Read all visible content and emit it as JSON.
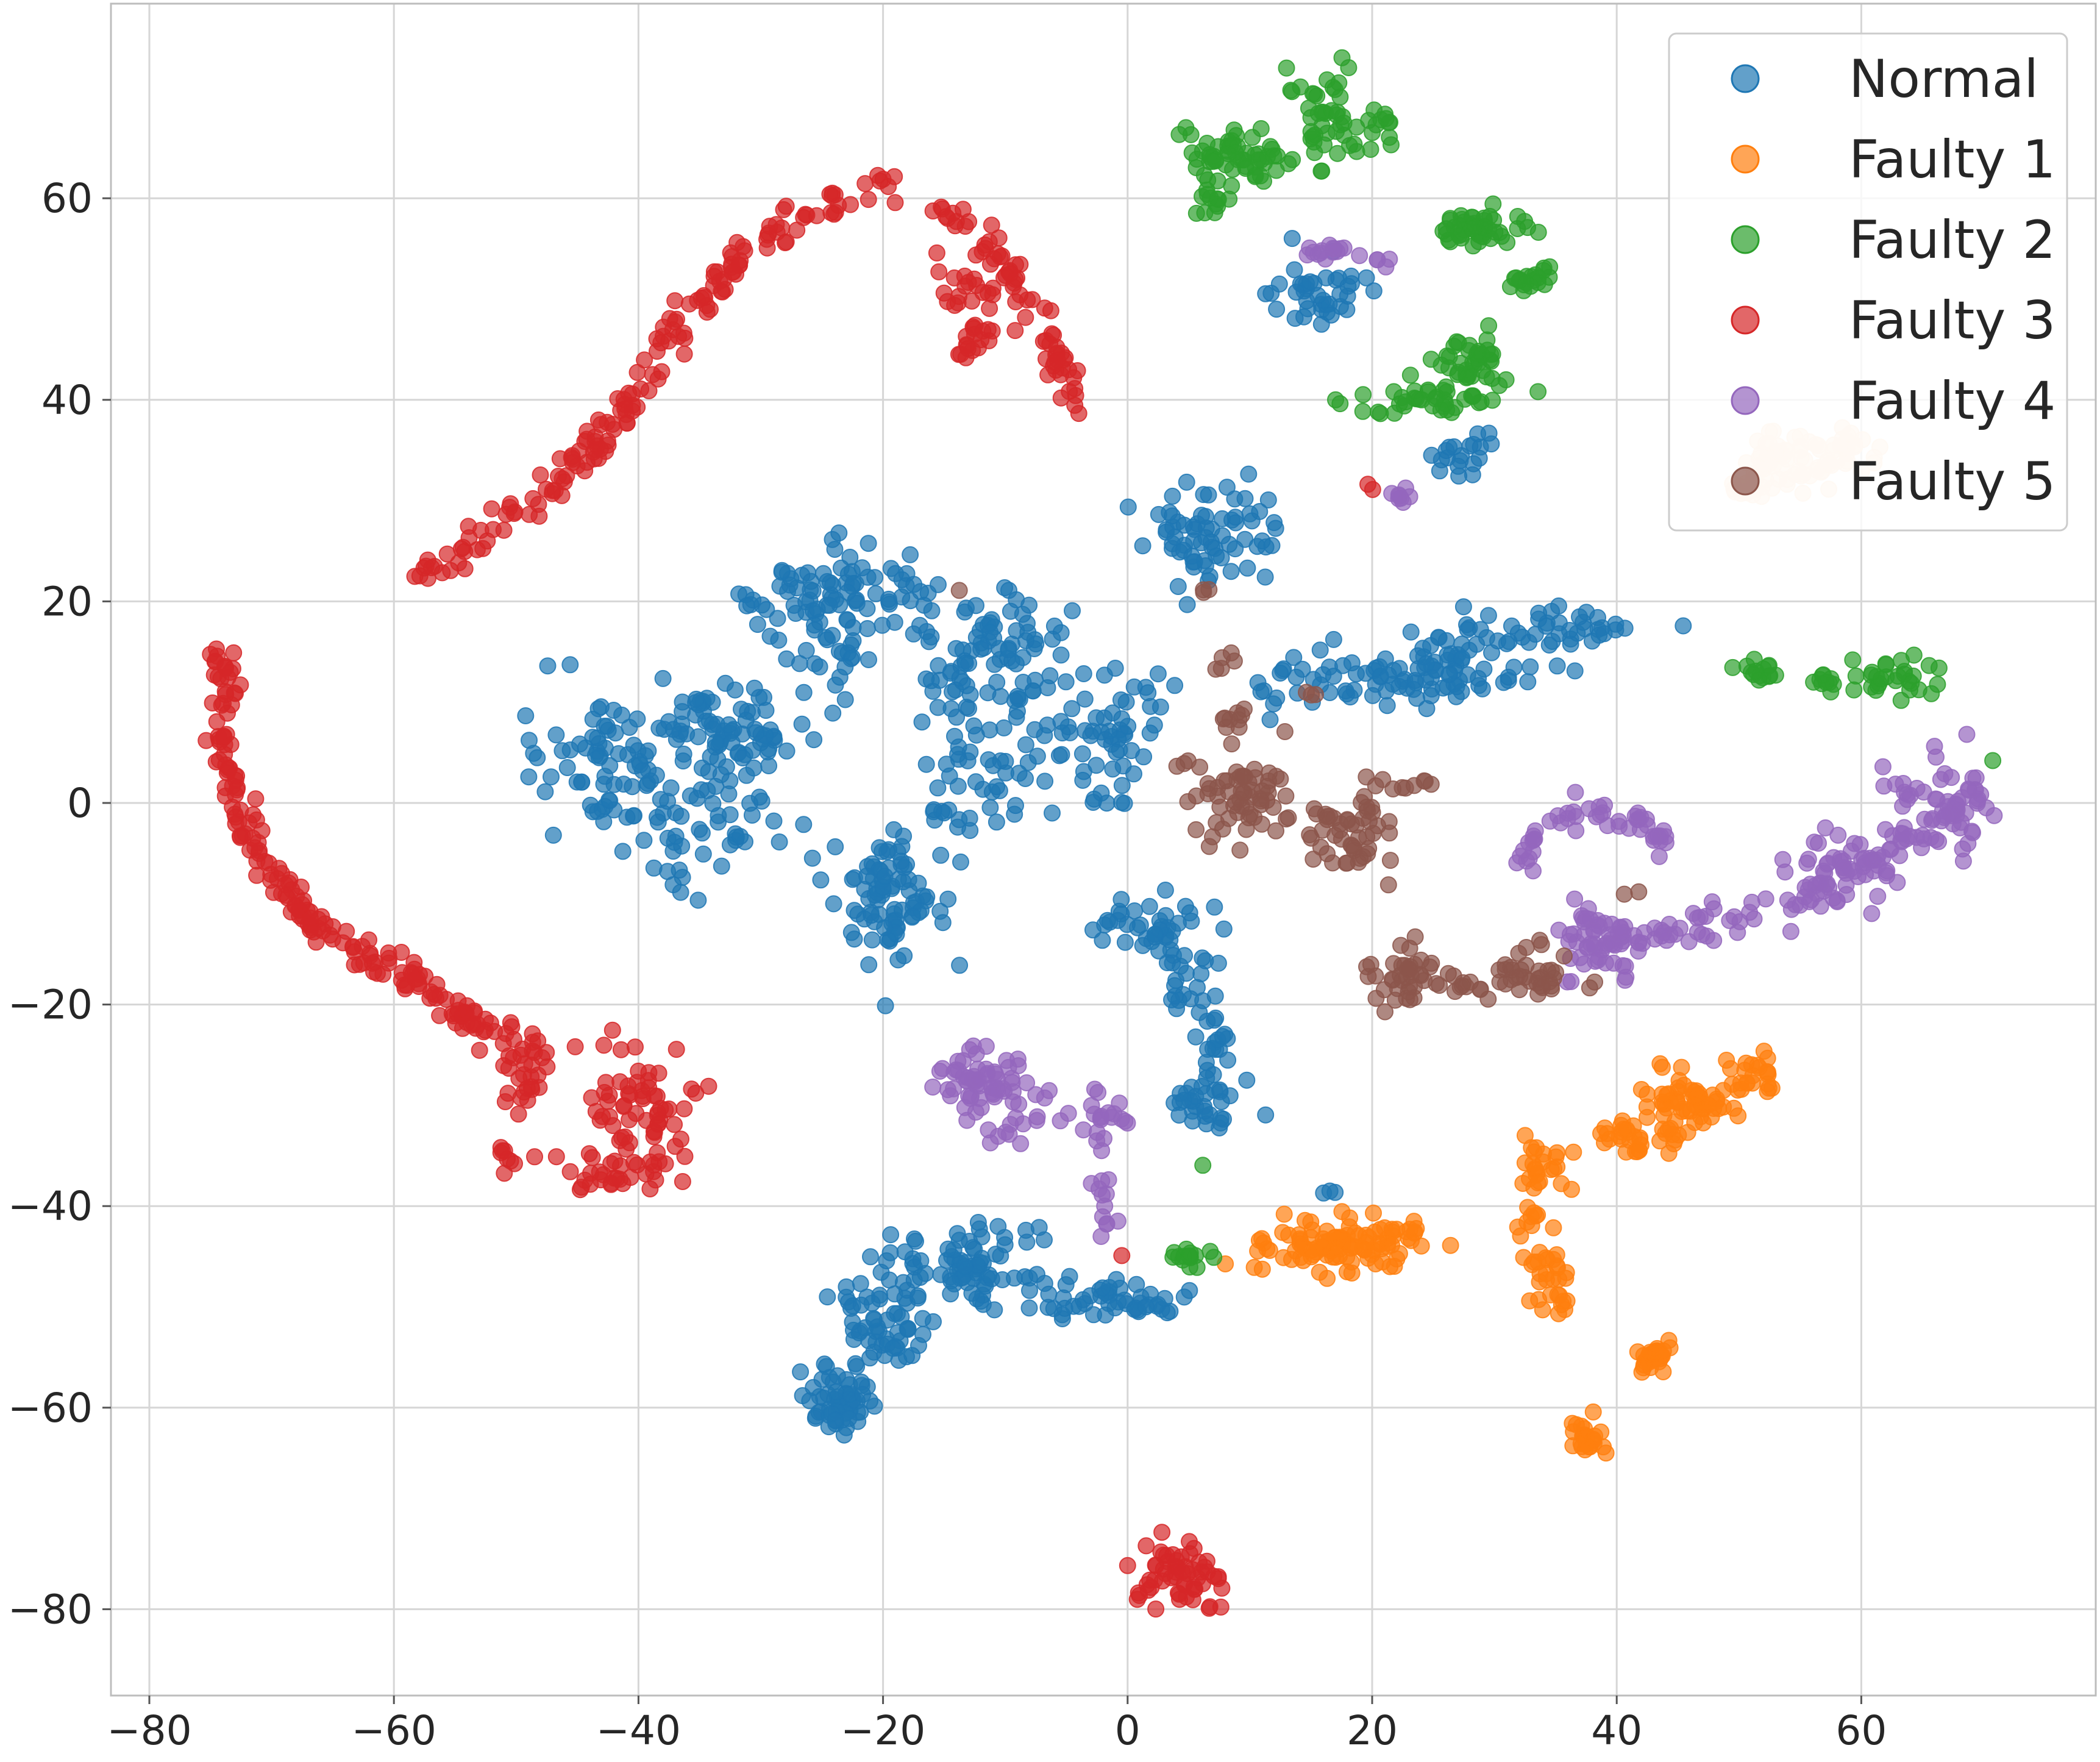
{
  "chart_data": {
    "type": "scatter",
    "title": "",
    "xlabel": "",
    "ylabel": "",
    "xlim": [
      -84,
      82
    ],
    "ylim": [
      -88,
      79
    ],
    "xticks": [
      -80,
      -60,
      -40,
      -20,
      0,
      20,
      40,
      60
    ],
    "yticks": [
      60,
      40,
      20,
      0,
      -20,
      -40,
      -60,
      -80
    ],
    "xtick_labels": [
      "−80",
      "−60",
      "−40",
      "−20",
      "0",
      "20",
      "40",
      "60"
    ],
    "ytick_labels": [
      "60",
      "40",
      "20",
      "0",
      "−20",
      "−40",
      "−60",
      "−80"
    ],
    "grid": true,
    "legend_position": "top-right",
    "series": [
      {
        "name": "Normal",
        "color": "#1f77b4",
        "clusters": [
          {
            "x": -42,
            "y": 3,
            "sx": 3.5,
            "sy": 3.5,
            "n": 70
          },
          {
            "x": -37,
            "y": -5,
            "sx": 1.5,
            "sy": 2.5,
            "n": 20
          },
          {
            "x": -33,
            "y": 7,
            "sx": 3.5,
            "sy": 2.5,
            "n": 90
          },
          {
            "x": -33,
            "y": -1,
            "sx": 2,
            "sy": 2,
            "n": 25
          },
          {
            "x": -28,
            "y": 20,
            "sx": 2.5,
            "sy": 1.2,
            "n": 30
          },
          {
            "x": -23,
            "y": 23,
            "sx": 2.5,
            "sy": 2,
            "n": 30
          },
          {
            "x": -24,
            "y": 16,
            "sx": 2,
            "sy": 2,
            "n": 30
          },
          {
            "x": -19,
            "y": 20,
            "sx": 2,
            "sy": 1.5,
            "n": 20
          },
          {
            "x": -20,
            "y": -9,
            "sx": 2.5,
            "sy": 3,
            "n": 90
          },
          {
            "x": -14,
            "y": 11,
            "sx": 1.5,
            "sy": 2.5,
            "n": 30
          },
          {
            "x": -12,
            "y": 2,
            "sx": 3,
            "sy": 2.5,
            "n": 40
          },
          {
            "x": -10,
            "y": 17,
            "sx": 2.5,
            "sy": 2,
            "n": 50
          },
          {
            "x": -8,
            "y": 10,
            "sx": 1.5,
            "sy": 2.5,
            "n": 20
          },
          {
            "x": -2,
            "y": 6,
            "sx": 2,
            "sy": 3,
            "n": 50
          },
          {
            "x": 3,
            "y": 11,
            "sx": 1,
            "sy": 1,
            "n": 5
          },
          {
            "x": 5,
            "y": 27,
            "sx": 1.5,
            "sy": 3,
            "n": 35
          },
          {
            "x": 9,
            "y": 26,
            "sx": 2,
            "sy": 2.5,
            "n": 35
          },
          {
            "x": 2,
            "y": -12,
            "sx": 3,
            "sy": 1.5,
            "n": 40
          },
          {
            "x": 5,
            "y": -18,
            "sx": 1.5,
            "sy": 2,
            "n": 20
          },
          {
            "x": 7,
            "y": -24,
            "sx": 1,
            "sy": 2,
            "n": 20
          },
          {
            "x": 6,
            "y": -30,
            "sx": 2,
            "sy": 1.5,
            "n": 30
          },
          {
            "x": 16,
            "y": 12,
            "sx": 4,
            "sy": 1.5,
            "n": 30
          },
          {
            "x": 23,
            "y": 12,
            "sx": 4,
            "sy": 1.5,
            "n": 50
          },
          {
            "x": 27,
            "y": 15,
            "sx": 2,
            "sy": 1.5,
            "n": 30
          },
          {
            "x": 36,
            "y": 17,
            "sx": 3.5,
            "sy": 1.5,
            "n": 40
          },
          {
            "x": 16,
            "y": 51,
            "sx": 2,
            "sy": 1.5,
            "n": 40
          },
          {
            "x": 28,
            "y": 35,
            "sx": 1.5,
            "sy": 1,
            "n": 20
          },
          {
            "x": 16,
            "y": -39,
            "sx": 0.5,
            "sy": 0.5,
            "n": 3
          },
          {
            "x": -13,
            "y": -46,
            "sx": 3,
            "sy": 2,
            "n": 80
          },
          {
            "x": -20,
            "y": -52,
            "sx": 2,
            "sy": 2.5,
            "n": 60
          },
          {
            "x": -24,
            "y": -59,
            "sx": 1.5,
            "sy": 2,
            "n": 60
          },
          {
            "x": -1,
            "y": -50,
            "sx": 2.5,
            "sy": 1,
            "n": 40
          },
          {
            "x": -6,
            "y": -49,
            "sx": 2,
            "sy": 0.8,
            "n": 10
          }
        ]
      },
      {
        "name": "Faulty 1",
        "color": "#ff7f0e",
        "clusters": [
          {
            "x": 17,
            "y": -44,
            "sx": 3,
            "sy": 1.5,
            "n": 90
          },
          {
            "x": 22,
            "y": -43,
            "sx": 2,
            "sy": 0.8,
            "n": 20
          },
          {
            "x": 34,
            "y": -36,
            "sx": 1.2,
            "sy": 1.2,
            "n": 25
          },
          {
            "x": 33,
            "y": -41,
            "sx": 1,
            "sy": 1,
            "n": 10
          },
          {
            "x": 34,
            "y": -46,
            "sx": 0.8,
            "sy": 0.8,
            "n": 15
          },
          {
            "x": 35,
            "y": -49,
            "sx": 0.8,
            "sy": 1,
            "n": 15
          },
          {
            "x": 41,
            "y": -33,
            "sx": 1.5,
            "sy": 1,
            "n": 30
          },
          {
            "x": 46,
            "y": -30,
            "sx": 1.5,
            "sy": 1.5,
            "n": 60
          },
          {
            "x": 51,
            "y": -27,
            "sx": 1.2,
            "sy": 1,
            "n": 25
          },
          {
            "x": 43,
            "y": -55,
            "sx": 0.8,
            "sy": 0.8,
            "n": 30
          },
          {
            "x": 38,
            "y": -63,
            "sx": 1,
            "sy": 1,
            "n": 25
          }
        ]
      },
      {
        "name": "Faulty 2",
        "color": "#2ca02c",
        "clusters": [
          {
            "x": 9,
            "y": 64,
            "sx": 2.5,
            "sy": 2,
            "n": 60
          },
          {
            "x": 7,
            "y": 60,
            "sx": 0.8,
            "sy": 1,
            "n": 12
          },
          {
            "x": 16,
            "y": 68,
            "sx": 1.5,
            "sy": 2,
            "n": 40
          },
          {
            "x": 20,
            "y": 67,
            "sx": 1.5,
            "sy": 1,
            "n": 15
          },
          {
            "x": 29,
            "y": 57,
            "sx": 2,
            "sy": 1,
            "n": 50
          },
          {
            "x": 33,
            "y": 52,
            "sx": 0.8,
            "sy": 0.8,
            "n": 20
          },
          {
            "x": 24,
            "y": 40,
            "sx": 2.5,
            "sy": 1,
            "n": 40
          },
          {
            "x": 28,
            "y": 43,
            "sx": 1.5,
            "sy": 1.5,
            "n": 40
          },
          {
            "x": 52,
            "y": 13,
            "sx": 1,
            "sy": 0.5,
            "n": 15
          },
          {
            "x": 57,
            "y": 12,
            "sx": 0.5,
            "sy": 0.5,
            "n": 10
          },
          {
            "x": 63,
            "y": 13,
            "sx": 2,
            "sy": 1,
            "n": 30
          },
          {
            "x": 5,
            "y": -45,
            "sx": 1,
            "sy": 0.5,
            "n": 15
          },
          {
            "x": 6,
            "y": -36,
            "sx": 0.3,
            "sy": 0.3,
            "n": 1
          },
          {
            "x": 71,
            "y": 4,
            "sx": 0.3,
            "sy": 0.3,
            "n": 1
          }
        ]
      },
      {
        "name": "Faulty 3",
        "color": "#d62728",
        "arcs": [
          {
            "points": [
              [
                -58,
                22
              ],
              [
                -53,
                26
              ],
              [
                -48,
                30
              ],
              [
                -44,
                35
              ],
              [
                -40,
                41
              ],
              [
                -36,
                48
              ],
              [
                -31,
                55
              ],
              [
                -25,
                60
              ],
              [
                -20,
                61
              ],
              [
                -15,
                59
              ],
              [
                -11,
                55
              ],
              [
                -7,
                48
              ],
              [
                -4,
                40
              ]
            ],
            "n": 240,
            "jitter": 1.0
          },
          {
            "points": [
              [
                -74,
                15
              ],
              [
                -74,
                6
              ],
              [
                -72,
                -3
              ],
              [
                -68,
                -10
              ],
              [
                -63,
                -15
              ],
              [
                -58,
                -18
              ],
              [
                -53,
                -22
              ],
              [
                -49,
                -25
              ]
            ],
            "n": 200,
            "jitter": 0.9
          }
        ],
        "clusters": [
          {
            "x": -13,
            "y": 50,
            "sx": 1.5,
            "sy": 3,
            "n": 30
          },
          {
            "x": -12,
            "y": 46,
            "sx": 1,
            "sy": 1,
            "n": 8
          },
          {
            "x": -49,
            "y": -27,
            "sx": 1,
            "sy": 2,
            "n": 25
          },
          {
            "x": -51,
            "y": -35,
            "sx": 0.5,
            "sy": 0.8,
            "n": 8
          },
          {
            "x": -40,
            "y": -30,
            "sx": 2.5,
            "sy": 3,
            "n": 70
          },
          {
            "x": -43,
            "y": -37,
            "sx": 2,
            "sy": 1,
            "n": 25
          },
          {
            "x": 4,
            "y": -77,
            "sx": 2,
            "sy": 2,
            "n": 60
          },
          {
            "x": 20,
            "y": 31,
            "sx": 0.3,
            "sy": 0.3,
            "n": 2
          },
          {
            "x": -1,
            "y": -45,
            "sx": 0.3,
            "sy": 0.3,
            "n": 1
          }
        ]
      },
      {
        "name": "Faulty 4",
        "color": "#9467bd",
        "arcs": [
          {
            "points": [
              [
                32,
                -6
              ],
              [
                34,
                -2
              ],
              [
                38,
                -1
              ],
              [
                42,
                -2
              ],
              [
                44,
                -4
              ]
            ],
            "n": 50,
            "jitter": 0.6
          },
          {
            "points": [
              [
                37,
                -12
              ],
              [
                42,
                -14
              ],
              [
                47,
                -12
              ],
              [
                52,
                -11
              ],
              [
                57,
                -8
              ],
              [
                62,
                -5
              ],
              [
                66,
                -2
              ],
              [
                70,
                1
              ]
            ],
            "n": 110,
            "jitter": 1.0
          }
        ],
        "clusters": [
          {
            "x": 66,
            "y": 0,
            "sx": 2,
            "sy": 2.5,
            "n": 50
          },
          {
            "x": 59,
            "y": -7,
            "sx": 2.5,
            "sy": 1.5,
            "n": 40
          },
          {
            "x": 38,
            "y": -14,
            "sx": 2,
            "sy": 2,
            "n": 40
          },
          {
            "x": -12,
            "y": -28,
            "sx": 2,
            "sy": 1.5,
            "n": 60
          },
          {
            "x": -9,
            "y": -31,
            "sx": 1.5,
            "sy": 1.5,
            "n": 15
          },
          {
            "x": -2,
            "y": -31,
            "sx": 1,
            "sy": 1.2,
            "n": 20
          },
          {
            "x": -2,
            "y": -40,
            "sx": 0.5,
            "sy": 1.5,
            "n": 12
          },
          {
            "x": 16,
            "y": 55,
            "sx": 1.5,
            "sy": 0.5,
            "n": 15
          },
          {
            "x": 20,
            "y": 54,
            "sx": 0.5,
            "sy": 0.5,
            "n": 4
          },
          {
            "x": 22,
            "y": 30,
            "sx": 0.5,
            "sy": 0.5,
            "n": 8
          }
        ]
      },
      {
        "name": "Faulty 5",
        "color": "#8c564b",
        "clusters": [
          {
            "x": 9,
            "y": 1,
            "sx": 2,
            "sy": 2.5,
            "n": 60
          },
          {
            "x": 9,
            "y": 8,
            "sx": 0.8,
            "sy": 1,
            "n": 10
          },
          {
            "x": 4,
            "y": 4,
            "sx": 0.5,
            "sy": 0.3,
            "n": 3
          },
          {
            "x": 18,
            "y": -3,
            "sx": 2,
            "sy": 2,
            "n": 50
          },
          {
            "x": 22,
            "y": 2,
            "sx": 1.5,
            "sy": 0.6,
            "n": 10
          },
          {
            "x": 23,
            "y": -17,
            "sx": 1.5,
            "sy": 1.5,
            "n": 40
          },
          {
            "x": 27,
            "y": -18,
            "sx": 1.2,
            "sy": 0.5,
            "n": 10
          },
          {
            "x": 33,
            "y": -17,
            "sx": 1.5,
            "sy": 1.2,
            "n": 35
          },
          {
            "x": 8,
            "y": 14,
            "sx": 0.5,
            "sy": 0.5,
            "n": 5
          },
          {
            "x": 15,
            "y": 11,
            "sx": 0.4,
            "sy": 0.4,
            "n": 3
          },
          {
            "x": 7,
            "y": 21,
            "sx": 0.4,
            "sy": 0.4,
            "n": 3
          },
          {
            "x": 41,
            "y": -9,
            "sx": 0.3,
            "sy": 0.3,
            "n": 2
          },
          {
            "x": 38,
            "y": -18,
            "sx": 0.3,
            "sy": 0.3,
            "n": 2
          },
          {
            "x": -14,
            "y": 21,
            "sx": 0.3,
            "sy": 0.3,
            "n": 1
          }
        ]
      },
      {
        "name": "",
        "color": "#ffe0c4",
        "in_legend": false,
        "clusters": [
          {
            "x": 54,
            "y": 34,
            "sx": 2.5,
            "sy": 1.5,
            "n": 60
          },
          {
            "x": 59,
            "y": 35,
            "sx": 1.5,
            "sy": 1,
            "n": 20
          },
          {
            "x": 51,
            "y": 31,
            "sx": 1,
            "sy": 1.2,
            "n": 15
          }
        ]
      }
    ]
  }
}
